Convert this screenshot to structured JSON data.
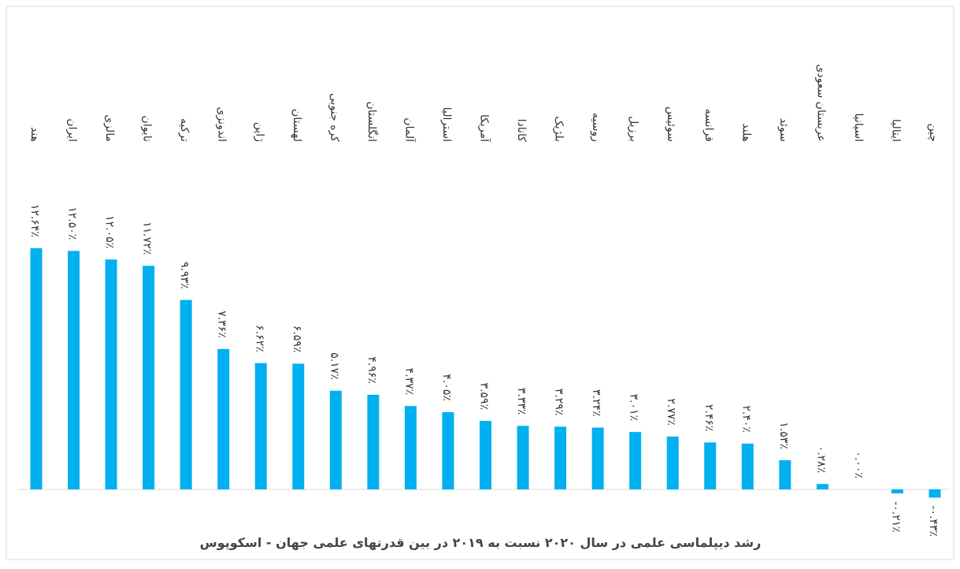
{
  "chart_data": {
    "type": "bar",
    "title": "رشد دیپلماسی علمی در سال ۲۰۲۰ نسبت به ۲۰۱۹ در بین قدرتهای علمی جهان - اسکوپوس",
    "categories": [
      "هند",
      "ایران",
      "مالزی",
      "تایوان",
      "ترکیه",
      "اندونزی",
      "ژاپن",
      "لهستان",
      "کره جنوبی",
      "انگلستان",
      "آلمان",
      "استرالیا",
      "آمریکا",
      "کانادا",
      "بلژیک",
      "روسیه",
      "برزیل",
      "سوئیس",
      "فرانسه",
      "هلند",
      "سوئد",
      "عربستان سعودی",
      "اسپانیا",
      "ایتالیا",
      "چین"
    ],
    "values": [
      12.64,
      12.5,
      12.05,
      11.72,
      9.93,
      7.36,
      6.62,
      6.59,
      5.17,
      4.96,
      4.37,
      4.05,
      3.59,
      3.33,
      3.29,
      3.24,
      3.01,
      2.77,
      2.46,
      2.4,
      1.53,
      0.28,
      0.0,
      -0.21,
      -0.43
    ],
    "value_labels": [
      "۱۲.۶۴٪",
      "۱۲.۵۰٪",
      "۱۲.۰۵٪",
      "۱۱.۷۲٪",
      "۹.۹۳٪",
      "۷.۳۶٪",
      "۶.۶۲٪",
      "۶.۵۹٪",
      "۵.۱۷٪",
      "۴.۹۶٪",
      "۴.۳۷٪",
      "۴.۰۵٪",
      "۳.۵۹٪",
      "۳.۳۳٪",
      "۳.۲۹٪",
      "۳.۲۴٪",
      "۳.۰۱٪",
      "۲.۷۷٪",
      "۲.۴۶٪",
      "۲.۴۰٪",
      "۱.۵۳٪",
      "۰.۲۸٪",
      "۰.۰۰٪",
      "-۰.۲۱٪",
      "-۰.۴۳٪"
    ],
    "color": "#00b0f0"
  }
}
